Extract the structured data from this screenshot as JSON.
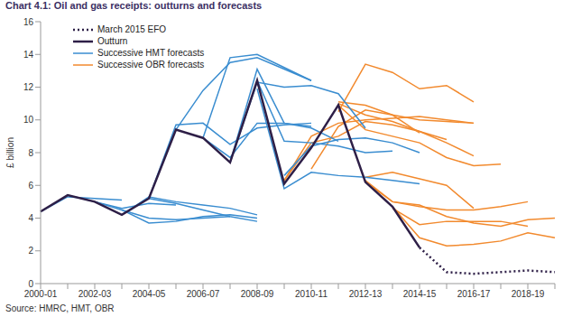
{
  "chart_data": {
    "type": "line",
    "title": "Chart 4.1: Oil and gas receipts: outturns and forecasts",
    "y_label": "£ billion",
    "source": "Source: HMRC, HMT, OBR",
    "categories": [
      "2000-01",
      null,
      "2002-03",
      null,
      "2004-05",
      null,
      "2006-07",
      null,
      "2008-09",
      null,
      "2010-11",
      null,
      "2012-13",
      null,
      "2014-15",
      null,
      "2016-17",
      null,
      "2018-19",
      null
    ],
    "ylim": [
      0,
      16
    ],
    "yticks": [
      0,
      2,
      4,
      6,
      8,
      10,
      12,
      14,
      16
    ],
    "grid": false,
    "legend": "upper left",
    "series": [
      {
        "name": "March 2015 EFO",
        "color": "#2e1f47",
        "line_style": "dotted",
        "values": [
          null,
          null,
          null,
          null,
          null,
          null,
          null,
          null,
          null,
          null,
          null,
          null,
          null,
          null,
          2.2,
          0.7,
          0.6,
          0.7,
          0.8,
          0.7
        ]
      },
      {
        "name": "Outturn",
        "color": "#2e1f47",
        "line_style": "solid",
        "values": [
          4.4,
          5.4,
          5.0,
          4.2,
          5.2,
          9.4,
          8.9,
          7.4,
          12.4,
          6.1,
          8.3,
          10.9,
          6.2,
          4.7,
          2.2,
          null,
          null,
          null,
          null,
          null
        ]
      },
      {
        "name": "Successive HMT forecasts",
        "color": "#3a8dd0",
        "line_style": "solid",
        "values": [
          [
            4.4,
            5.3,
            5.2,
            5.1,
            null,
            null,
            null,
            null,
            null,
            null,
            null,
            null,
            null,
            null,
            null,
            null,
            null,
            null,
            null,
            null
          ],
          [
            null,
            5.4,
            5.0,
            4.6,
            4.9,
            4.8,
            null,
            null,
            null,
            null,
            null,
            null,
            null,
            null,
            null,
            null,
            null,
            null,
            null,
            null
          ],
          [
            null,
            null,
            5.0,
            4.5,
            4.0,
            3.9,
            4.0,
            4.1,
            null,
            null,
            null,
            null,
            null,
            null,
            null,
            null,
            null,
            null,
            null,
            null
          ],
          [
            null,
            null,
            null,
            4.2,
            5.3,
            5.0,
            4.8,
            4.6,
            4.2,
            null,
            null,
            null,
            null,
            null,
            null,
            null,
            null,
            null,
            null,
            null
          ],
          [
            null,
            null,
            null,
            null,
            5.2,
            4.9,
            4.5,
            4.1,
            3.8,
            null,
            null,
            null,
            null,
            null,
            null,
            null,
            null,
            null,
            null,
            null
          ],
          [
            null,
            null,
            null,
            4.5,
            3.7,
            3.8,
            4.1,
            4.2,
            4.0,
            null,
            null,
            null,
            null,
            null,
            null,
            null,
            null,
            null,
            null,
            null
          ],
          [
            null,
            null,
            null,
            null,
            5.2,
            9.7,
            9.8,
            8.5,
            9.5,
            9.7,
            9.8,
            null,
            null,
            null,
            null,
            null,
            null,
            null,
            null,
            null
          ],
          [
            null,
            null,
            null,
            null,
            null,
            9.4,
            11.8,
            13.5,
            13.8,
            13.1,
            12.4,
            null,
            null,
            null,
            null,
            null,
            null,
            null,
            null,
            null
          ],
          [
            null,
            null,
            null,
            null,
            null,
            null,
            8.9,
            13.8,
            14.0,
            13.2,
            12.4,
            null,
            null,
            null,
            null,
            null,
            null,
            null,
            null,
            null
          ],
          [
            null,
            null,
            null,
            null,
            null,
            null,
            8.9,
            7.7,
            9.8,
            9.8,
            9.5,
            8.7,
            null,
            null,
            null,
            null,
            null,
            null,
            null,
            null
          ],
          [
            null,
            null,
            null,
            null,
            null,
            null,
            null,
            7.4,
            13.1,
            9.8,
            9.6,
            null,
            null,
            null,
            null,
            null,
            null,
            null,
            null,
            null
          ],
          [
            null,
            null,
            null,
            null,
            null,
            null,
            null,
            null,
            12.4,
            8.7,
            8.6,
            8.4,
            8.0,
            8.1,
            null,
            null,
            null,
            null,
            null,
            null
          ],
          [
            null,
            null,
            null,
            null,
            null,
            null,
            null,
            null,
            11.9,
            5.8,
            6.8,
            6.6,
            6.5,
            6.3,
            6.1,
            null,
            null,
            null,
            null,
            null
          ],
          [
            null,
            null,
            null,
            null,
            null,
            null,
            null,
            7.4,
            12.3,
            12.0,
            12.1,
            11.6,
            9.5,
            null,
            null,
            null,
            null,
            null,
            null,
            null
          ],
          [
            null,
            null,
            null,
            null,
            null,
            null,
            null,
            null,
            null,
            6.6,
            8.4,
            8.8,
            8.9,
            8.6,
            8.0,
            null,
            null,
            null,
            null,
            null
          ]
        ]
      },
      {
        "name": "Successive OBR forecasts",
        "color": "#f28a2e",
        "line_style": "solid",
        "values": [
          [
            null,
            null,
            null,
            null,
            null,
            null,
            null,
            null,
            null,
            6.3,
            8.6,
            9.0,
            9.9,
            9.7,
            9.3,
            8.8,
            null,
            null,
            null,
            null
          ],
          [
            null,
            null,
            null,
            null,
            null,
            null,
            null,
            null,
            null,
            6.3,
            9.0,
            9.8,
            10.0,
            10.1,
            10.2,
            10.0,
            9.8,
            null,
            null,
            null
          ],
          [
            null,
            null,
            null,
            null,
            null,
            null,
            null,
            null,
            null,
            null,
            null,
            10.5,
            13.4,
            12.9,
            11.9,
            12.1,
            11.1,
            null,
            null,
            null
          ],
          [
            null,
            null,
            null,
            null,
            null,
            null,
            null,
            null,
            null,
            null,
            null,
            11.1,
            10.9,
            10.3,
            10.0,
            9.9,
            9.8,
            null,
            null,
            null
          ],
          [
            null,
            null,
            null,
            null,
            null,
            null,
            null,
            null,
            null,
            null,
            null,
            11.0,
            10.3,
            9.9,
            9.3,
            8.6,
            7.8,
            null,
            null,
            null
          ],
          [
            null,
            null,
            null,
            null,
            null,
            null,
            null,
            null,
            null,
            null,
            null,
            10.9,
            9.4,
            9.0,
            8.6,
            7.7,
            7.2,
            7.3,
            null,
            null
          ],
          [
            null,
            null,
            null,
            null,
            null,
            null,
            null,
            null,
            null,
            null,
            null,
            null,
            6.5,
            6.8,
            6.4,
            6.0,
            4.6,
            null,
            null,
            null
          ],
          [
            null,
            null,
            null,
            null,
            null,
            null,
            null,
            null,
            null,
            null,
            null,
            null,
            6.3,
            5.0,
            4.7,
            4.5,
            4.5,
            4.7,
            5.0,
            null
          ],
          [
            null,
            null,
            null,
            null,
            null,
            null,
            null,
            null,
            null,
            null,
            null,
            null,
            6.2,
            5.0,
            4.8,
            4.1,
            3.7,
            3.5,
            3.9,
            4.0
          ],
          [
            null,
            null,
            null,
            null,
            null,
            null,
            null,
            null,
            null,
            null,
            null,
            null,
            null,
            4.7,
            2.8,
            2.3,
            2.4,
            2.6,
            3.1,
            2.8
          ],
          [
            null,
            null,
            null,
            null,
            null,
            null,
            null,
            null,
            null,
            null,
            null,
            null,
            null,
            4.6,
            3.6,
            3.8,
            3.8,
            3.8,
            3.5,
            null
          ],
          [
            null,
            null,
            null,
            null,
            null,
            null,
            null,
            null,
            null,
            null,
            7.0,
            9.6,
            10.6,
            10.3,
            9.2,
            null,
            null,
            null,
            null,
            null
          ]
        ]
      }
    ]
  }
}
